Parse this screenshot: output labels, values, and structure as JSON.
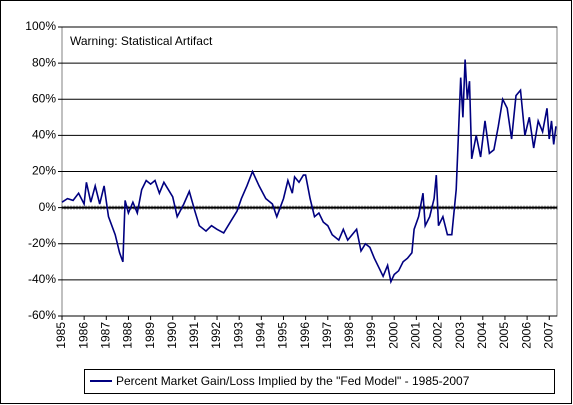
{
  "chart_data": {
    "type": "line",
    "annotation": "Warning: Statistical Artifact",
    "x": [
      1985.0,
      1985.25,
      1985.5,
      1985.75,
      1986.0,
      1986.1,
      1986.3,
      1986.5,
      1986.7,
      1986.9,
      1987.1,
      1987.4,
      1987.6,
      1987.75,
      1987.85,
      1988.0,
      1988.2,
      1988.4,
      1988.6,
      1988.8,
      1989.0,
      1989.2,
      1989.4,
      1989.6,
      1989.8,
      1990.0,
      1990.2,
      1990.5,
      1990.75,
      1991.0,
      1991.2,
      1991.5,
      1991.75,
      1992.0,
      1992.3,
      1992.6,
      1992.9,
      1993.1,
      1993.35,
      1993.6,
      1993.9,
      1994.2,
      1994.5,
      1994.7,
      1995.0,
      1995.2,
      1995.4,
      1995.5,
      1995.7,
      1995.9,
      1996.0,
      1996.2,
      1996.4,
      1996.6,
      1996.8,
      1997.0,
      1997.2,
      1997.5,
      1997.7,
      1997.9,
      1998.1,
      1998.3,
      1998.5,
      1998.7,
      1998.9,
      1999.1,
      1999.3,
      1999.5,
      1999.7,
      1999.85,
      2000.0,
      2000.2,
      2000.4,
      2000.6,
      2000.8,
      2000.9,
      2001.1,
      2001.3,
      2001.4,
      2001.6,
      2001.8,
      2001.9,
      2002.0,
      2002.2,
      2002.4,
      2002.6,
      2002.8,
      2002.9,
      2003.0,
      2003.1,
      2003.2,
      2003.3,
      2003.4,
      2003.5,
      2003.7,
      2003.9,
      2004.1,
      2004.3,
      2004.5,
      2004.7,
      2004.9,
      2005.1,
      2005.3,
      2005.5,
      2005.7,
      2005.9,
      2006.1,
      2006.3,
      2006.5,
      2006.7,
      2006.9,
      2007.0,
      2007.1,
      2007.2,
      2007.3
    ],
    "series": [
      {
        "name": "Percent Market Gain/Loss Implied by the \"Fed Model\" - 1985-2007",
        "color": "#000080",
        "values": [
          3,
          5,
          4,
          8,
          2,
          14,
          3,
          12,
          2,
          12,
          -5,
          -15,
          -25,
          -30,
          4,
          -3,
          3,
          -3,
          10,
          15,
          13,
          15,
          8,
          14,
          10,
          6,
          -5,
          2,
          9,
          -2,
          -10,
          -13,
          -10,
          -12,
          -14,
          -8,
          -2,
          5,
          12,
          20,
          12,
          5,
          2,
          -5,
          5,
          15,
          8,
          17,
          14,
          18,
          18,
          5,
          -5,
          -3,
          -8,
          -10,
          -15,
          -18,
          -12,
          -18,
          -15,
          -12,
          -24,
          -20,
          -22,
          -28,
          -33,
          -38,
          -32,
          -41,
          -37,
          -35,
          -30,
          -28,
          -25,
          -12,
          -5,
          8,
          -10,
          -5,
          5,
          18,
          -10,
          -5,
          -15,
          -15,
          10,
          40,
          72,
          50,
          82,
          60,
          70,
          27,
          40,
          28,
          48,
          30,
          32,
          45,
          60,
          55,
          38,
          62,
          65,
          40,
          50,
          33,
          48,
          42,
          55,
          38,
          48,
          35,
          45
        ]
      }
    ],
    "xlim": [
      1985,
      2007.35
    ],
    "xticks": [
      1985,
      1986,
      1987,
      1988,
      1989,
      1990,
      1991,
      1992,
      1993,
      1994,
      1995,
      1996,
      1997,
      1998,
      1999,
      2000,
      2001,
      2002,
      2003,
      2004,
      2005,
      2006,
      2007
    ],
    "ylim": [
      -60,
      100
    ],
    "yticks": [
      {
        "value": -60,
        "label": "-60%"
      },
      {
        "value": -40,
        "label": "-40%"
      },
      {
        "value": -20,
        "label": "-20%"
      },
      {
        "value": 0,
        "label": "0%"
      },
      {
        "value": 20,
        "label": "20%"
      },
      {
        "value": 40,
        "label": "40%"
      },
      {
        "value": 60,
        "label": "60%"
      },
      {
        "value": 80,
        "label": "80%"
      },
      {
        "value": 100,
        "label": "100%"
      }
    ],
    "grid": true
  }
}
